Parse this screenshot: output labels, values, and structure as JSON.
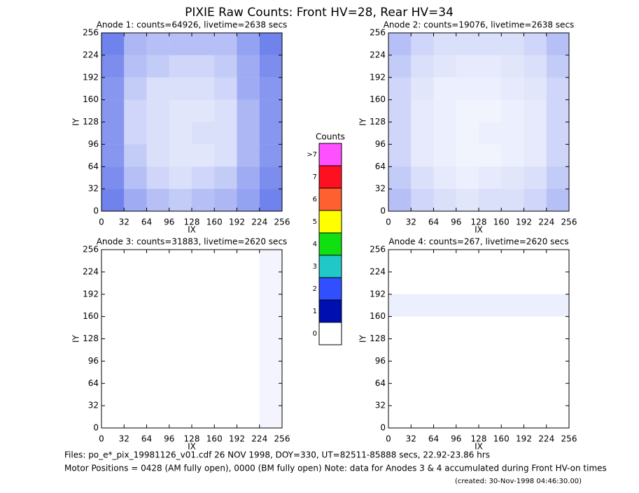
{
  "title": "PIXIE Raw Counts:  Front HV=28, Rear HV=34",
  "footer": [
    "Files: po_e*_pix_19981126_v01.cdf    26 NOV 1998, DOY=330, UT=82511-85888 secs, 22.92-23.86 hrs",
    "Motor Positions = 0428 (AM fully open), 0000 (BM fully open)    Note: data for Anodes 3 & 4 accumulated during Front HV-on times",
    "(created: 30-Nov-1998 04:46:30.00)"
  ],
  "chart_data": [
    {
      "type": "heatmap",
      "title": "Anode 1: counts=64926, livetime=2638 secs",
      "xlabel": "IX",
      "ylabel": "IY",
      "xlim": [
        0,
        256
      ],
      "ylim": [
        0,
        256
      ],
      "xticks": [
        0,
        32,
        64,
        96,
        128,
        160,
        192,
        224,
        256
      ],
      "yticks": [
        0,
        32,
        64,
        96,
        128,
        160,
        192,
        224,
        256
      ],
      "color": "#1030e0",
      "values": [
        [
          0.6,
          0.35,
          0.3,
          0.3,
          0.3,
          0.3,
          0.45,
          0.6
        ],
        [
          0.55,
          0.3,
          0.25,
          0.2,
          0.2,
          0.25,
          0.4,
          0.55
        ],
        [
          0.5,
          0.25,
          0.15,
          0.15,
          0.15,
          0.2,
          0.4,
          0.5
        ],
        [
          0.5,
          0.2,
          0.15,
          0.12,
          0.12,
          0.15,
          0.35,
          0.5
        ],
        [
          0.5,
          0.2,
          0.15,
          0.12,
          0.15,
          0.15,
          0.35,
          0.5
        ],
        [
          0.5,
          0.25,
          0.15,
          0.12,
          0.12,
          0.15,
          0.35,
          0.5
        ],
        [
          0.55,
          0.3,
          0.2,
          0.15,
          0.2,
          0.25,
          0.4,
          0.55
        ],
        [
          0.6,
          0.4,
          0.3,
          0.25,
          0.3,
          0.35,
          0.45,
          0.6
        ]
      ]
    },
    {
      "type": "heatmap",
      "title": "Anode 2: counts=19076, livetime=2638 secs",
      "xlabel": "IX",
      "ylabel": "IY",
      "xlim": [
        0,
        256
      ],
      "ylim": [
        0,
        256
      ],
      "xticks": [
        0,
        32,
        64,
        96,
        128,
        160,
        192,
        224,
        256
      ],
      "yticks": [
        0,
        32,
        64,
        96,
        128,
        160,
        192,
        224,
        256
      ],
      "color": "#1030e0",
      "values": [
        [
          0.3,
          0.2,
          0.15,
          0.15,
          0.15,
          0.15,
          0.2,
          0.3
        ],
        [
          0.25,
          0.15,
          0.12,
          0.1,
          0.1,
          0.12,
          0.15,
          0.25
        ],
        [
          0.2,
          0.12,
          0.08,
          0.08,
          0.08,
          0.1,
          0.12,
          0.2
        ],
        [
          0.2,
          0.1,
          0.08,
          0.06,
          0.06,
          0.08,
          0.1,
          0.2
        ],
        [
          0.2,
          0.1,
          0.08,
          0.06,
          0.08,
          0.08,
          0.1,
          0.2
        ],
        [
          0.2,
          0.1,
          0.08,
          0.06,
          0.06,
          0.08,
          0.1,
          0.2
        ],
        [
          0.25,
          0.15,
          0.1,
          0.08,
          0.1,
          0.12,
          0.15,
          0.25
        ],
        [
          0.3,
          0.2,
          0.15,
          0.12,
          0.15,
          0.15,
          0.2,
          0.3
        ]
      ]
    },
    {
      "type": "heatmap",
      "title": "Anode 3: counts=31883, livetime=2620 secs",
      "xlabel": "IX",
      "ylabel": "IY",
      "xlim": [
        0,
        256
      ],
      "ylim": [
        0,
        256
      ],
      "xticks": [
        0,
        32,
        64,
        96,
        128,
        160,
        192,
        224,
        256
      ],
      "yticks": [
        0,
        32,
        64,
        96,
        128,
        160,
        192,
        224,
        256
      ],
      "color": "#1030e0",
      "values": [
        [
          0,
          0,
          0,
          0,
          0,
          0,
          0,
          0.05
        ],
        [
          0,
          0,
          0,
          0,
          0,
          0,
          0,
          0.05
        ],
        [
          0,
          0,
          0,
          0,
          0,
          0,
          0,
          0.05
        ],
        [
          0,
          0,
          0,
          0,
          0,
          0,
          0,
          0.05
        ],
        [
          0,
          0,
          0,
          0,
          0,
          0,
          0,
          0.05
        ],
        [
          0,
          0,
          0,
          0,
          0,
          0,
          0,
          0.05
        ],
        [
          0,
          0,
          0,
          0,
          0,
          0,
          0,
          0.05
        ],
        [
          0,
          0,
          0,
          0,
          0,
          0,
          0,
          0.05
        ]
      ]
    },
    {
      "type": "heatmap",
      "title": "Anode 4: counts=267, livetime=2620 secs",
      "xlabel": "IX",
      "ylabel": "IY",
      "xlim": [
        0,
        256
      ],
      "ylim": [
        0,
        256
      ],
      "xticks": [
        0,
        32,
        64,
        96,
        128,
        160,
        192,
        224,
        256
      ],
      "yticks": [
        0,
        32,
        64,
        96,
        128,
        160,
        192,
        224,
        256
      ],
      "color": "#1030e0",
      "values": [
        [
          0,
          0,
          0,
          0,
          0,
          0,
          0,
          0
        ],
        [
          0,
          0,
          0,
          0,
          0,
          0,
          0,
          0
        ],
        [
          0.08,
          0.08,
          0.08,
          0.08,
          0.08,
          0.08,
          0.08,
          0.08
        ],
        [
          0,
          0,
          0,
          0,
          0,
          0,
          0,
          0
        ],
        [
          0,
          0,
          0,
          0,
          0,
          0,
          0,
          0
        ],
        [
          0,
          0,
          0,
          0,
          0,
          0,
          0,
          0
        ],
        [
          0,
          0,
          0,
          0,
          0,
          0,
          0,
          0
        ],
        [
          0,
          0,
          0,
          0,
          0,
          0,
          0,
          0
        ]
      ]
    },
    {
      "type": "colorbar",
      "title": "Counts",
      "categories": [
        "0",
        "1",
        "2",
        "3",
        "4",
        "5",
        "6",
        "7",
        ">7"
      ],
      "colors": [
        "#ffffff",
        "#0010b0",
        "#3050ff",
        "#20c8c8",
        "#10e010",
        "#ffff00",
        "#ff6030",
        "#ff1020",
        "#ff50ff"
      ]
    }
  ]
}
